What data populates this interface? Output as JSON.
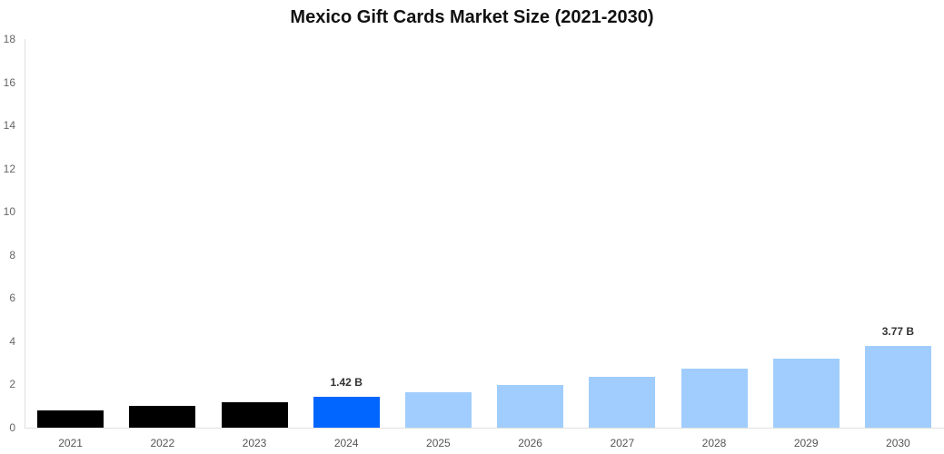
{
  "chart_data": {
    "type": "bar",
    "title": "Mexico Gift Cards Market Size (2021-2030)",
    "xlabel": "",
    "ylabel": "",
    "ylim": [
      0,
      18
    ],
    "yticks": [
      0,
      2,
      4,
      6,
      8,
      10,
      12,
      14,
      16,
      18
    ],
    "grid": false,
    "legend": null,
    "categories": [
      "2021",
      "2022",
      "2023",
      "2024",
      "2025",
      "2026",
      "2027",
      "2028",
      "2029",
      "2030"
    ],
    "values": [
      0.8,
      0.99,
      1.18,
      1.42,
      1.66,
      1.96,
      2.35,
      2.73,
      3.2,
      3.77
    ],
    "unit": "B",
    "bar_colors": [
      "#000000",
      "#000000",
      "#000000",
      "#0066ff",
      "#a0cdfd",
      "#a0cdfd",
      "#a0cdfd",
      "#a0cdfd",
      "#a0cdfd",
      "#a0cdfd"
    ],
    "data_labels": [
      {
        "category": "2024",
        "text": "1.42 B"
      },
      {
        "category": "2030",
        "text": "3.77 B"
      }
    ]
  }
}
